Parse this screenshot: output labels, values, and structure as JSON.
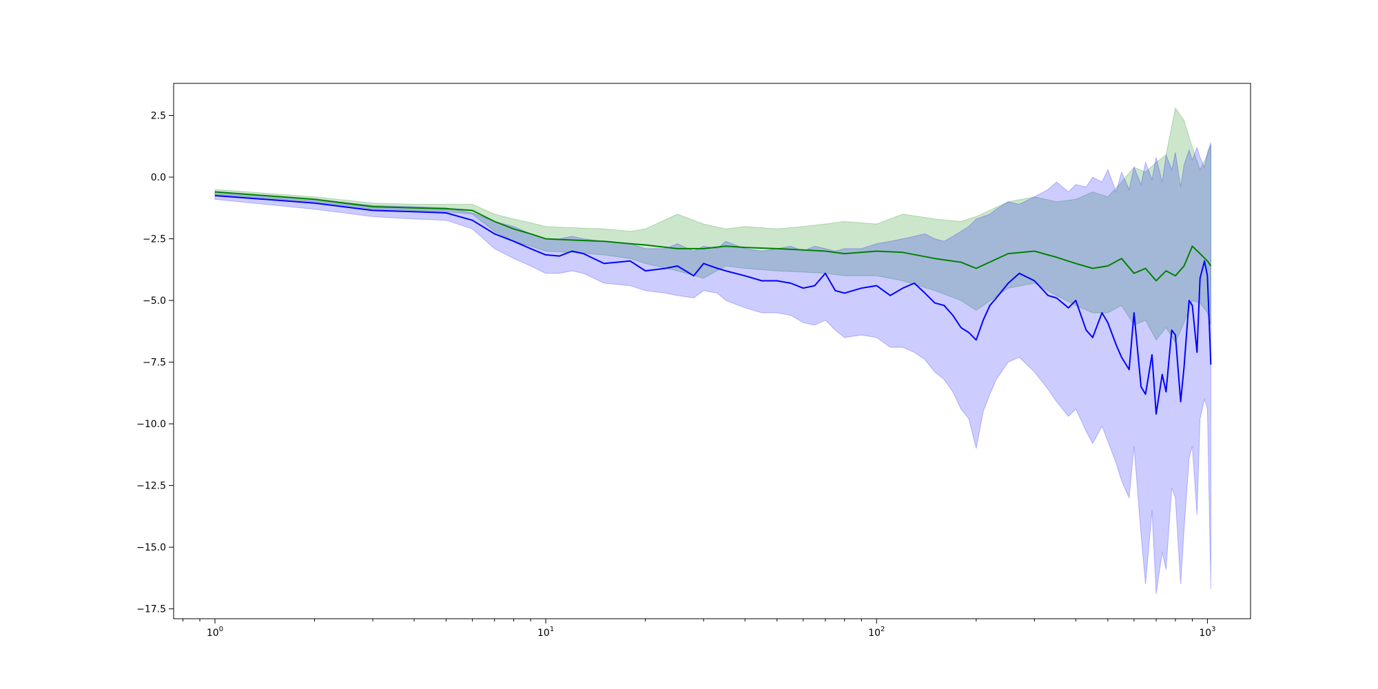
{
  "chart_data": {
    "type": "line",
    "title": "",
    "xlabel": "",
    "ylabel": "",
    "xscale": "log",
    "xlim": [
      0.75,
      1350
    ],
    "ylim": [
      -17.9,
      3.8
    ],
    "grid": false,
    "legend": "none",
    "x_ticks": [
      {
        "value": 1,
        "base": "10",
        "exp": "0"
      },
      {
        "value": 10,
        "base": "10",
        "exp": "1"
      },
      {
        "value": 100,
        "base": "10",
        "exp": "2"
      },
      {
        "value": 1000,
        "base": "10",
        "exp": "3"
      }
    ],
    "y_ticks": [
      {
        "value": 2.5,
        "label": "2.5"
      },
      {
        "value": 0.0,
        "label": "0.0"
      },
      {
        "value": -2.5,
        "label": "−2.5"
      },
      {
        "value": -5.0,
        "label": "−5.0"
      },
      {
        "value": -7.5,
        "label": "−7.5"
      },
      {
        "value": -10.0,
        "label": "−10.0"
      },
      {
        "value": -12.5,
        "label": "−12.5"
      },
      {
        "value": -15.0,
        "label": "−15.0"
      },
      {
        "value": -17.5,
        "label": "−17.5"
      }
    ],
    "series": [
      {
        "color": "#008000",
        "band_color": "#008000",
        "band_opacity": 0.2,
        "x": [
          1,
          2,
          3,
          4,
          5,
          6,
          7,
          8,
          9,
          10,
          12,
          15,
          18,
          20,
          25,
          30,
          35,
          40,
          50,
          60,
          70,
          80,
          100,
          120,
          150,
          180,
          200,
          250,
          300,
          350,
          400,
          450,
          500,
          550,
          600,
          650,
          700,
          750,
          800,
          850,
          900,
          950,
          1000,
          1024
        ],
        "y": [
          -0.6,
          -0.9,
          -1.2,
          -1.25,
          -1.28,
          -1.35,
          -1.8,
          -2.1,
          -2.3,
          -2.5,
          -2.55,
          -2.6,
          -2.7,
          -2.75,
          -2.9,
          -2.9,
          -2.8,
          -2.85,
          -2.9,
          -2.95,
          -3.0,
          -3.1,
          -3.0,
          -3.05,
          -3.3,
          -3.45,
          -3.7,
          -3.1,
          -3.0,
          -3.25,
          -3.5,
          -3.7,
          -3.6,
          -3.3,
          -3.9,
          -3.7,
          -4.2,
          -3.8,
          -4.0,
          -3.6,
          -2.8,
          -3.1,
          -3.4,
          -3.6
        ],
        "lower": [
          -0.7,
          -1.0,
          -1.3,
          -1.35,
          -1.4,
          -1.5,
          -2.2,
          -2.6,
          -2.8,
          -3.0,
          -3.05,
          -3.15,
          -3.3,
          -3.5,
          -3.8,
          -4.1,
          -3.6,
          -3.7,
          -3.8,
          -3.85,
          -3.9,
          -4.0,
          -4.0,
          -4.2,
          -4.6,
          -5.0,
          -5.4,
          -4.5,
          -4.3,
          -4.8,
          -5.2,
          -5.5,
          -5.5,
          -5.2,
          -6.0,
          -5.8,
          -6.6,
          -6.1,
          -6.7,
          -5.9,
          -5.0,
          -5.1,
          -5.5,
          -6.0
        ],
        "upper": [
          -0.5,
          -0.8,
          -1.05,
          -1.1,
          -1.1,
          -1.1,
          -1.5,
          -1.7,
          -1.85,
          -2.0,
          -2.05,
          -2.1,
          -2.2,
          -2.1,
          -1.5,
          -1.9,
          -2.1,
          -2.0,
          -2.1,
          -2.0,
          -1.9,
          -1.8,
          -1.9,
          -1.5,
          -1.7,
          -1.8,
          -1.6,
          -1.0,
          -0.8,
          -1.0,
          -0.9,
          -0.6,
          -0.8,
          -0.2,
          0.4,
          0.2,
          0.6,
          0.9,
          2.8,
          2.3,
          1.2,
          0.3,
          0.9,
          1.3
        ]
      },
      {
        "color": "#0000ff",
        "band_color": "#0000ff",
        "band_opacity": 0.2,
        "x": [
          1,
          2,
          3,
          4,
          5,
          6,
          7,
          8,
          9,
          10,
          11,
          12,
          13,
          15,
          18,
          20,
          23,
          25,
          28,
          30,
          33,
          35,
          40,
          45,
          50,
          55,
          60,
          65,
          70,
          75,
          80,
          90,
          100,
          110,
          120,
          130,
          140,
          150,
          160,
          170,
          180,
          190,
          200,
          210,
          220,
          230,
          250,
          270,
          300,
          330,
          350,
          380,
          400,
          430,
          450,
          480,
          500,
          530,
          550,
          580,
          600,
          630,
          650,
          680,
          700,
          730,
          750,
          780,
          800,
          830,
          850,
          880,
          900,
          930,
          950,
          980,
          1000,
          1024
        ],
        "y": [
          -0.75,
          -1.05,
          -1.35,
          -1.4,
          -1.45,
          -1.75,
          -2.3,
          -2.6,
          -2.9,
          -3.15,
          -3.2,
          -3.0,
          -3.1,
          -3.5,
          -3.4,
          -3.8,
          -3.7,
          -3.6,
          -4.0,
          -3.5,
          -3.7,
          -3.8,
          -4.0,
          -4.2,
          -4.2,
          -4.3,
          -4.5,
          -4.4,
          -3.9,
          -4.6,
          -4.7,
          -4.5,
          -4.4,
          -4.8,
          -4.5,
          -4.3,
          -4.7,
          -5.1,
          -5.2,
          -5.6,
          -6.1,
          -6.3,
          -6.6,
          -5.8,
          -5.2,
          -4.9,
          -4.3,
          -3.9,
          -4.2,
          -4.8,
          -4.9,
          -5.3,
          -5.0,
          -6.2,
          -6.5,
          -5.5,
          -5.9,
          -6.8,
          -7.3,
          -7.8,
          -5.5,
          -8.5,
          -8.8,
          -7.2,
          -9.6,
          -8.0,
          -8.7,
          -6.2,
          -6.4,
          -9.1,
          -7.7,
          -5.0,
          -5.2,
          -7.1,
          -4.1,
          -3.4,
          -4.0,
          -7.6
        ],
        "lower": [
          -0.9,
          -1.3,
          -1.6,
          -1.7,
          -1.75,
          -2.1,
          -2.9,
          -3.3,
          -3.6,
          -3.9,
          -3.9,
          -3.8,
          -3.9,
          -4.3,
          -4.4,
          -4.6,
          -4.7,
          -4.8,
          -4.9,
          -4.6,
          -4.7,
          -5.0,
          -5.3,
          -5.5,
          -5.5,
          -5.6,
          -5.9,
          -6.0,
          -5.8,
          -6.2,
          -6.5,
          -6.4,
          -6.5,
          -6.9,
          -6.9,
          -7.1,
          -7.4,
          -7.9,
          -8.2,
          -8.7,
          -9.4,
          -9.8,
          -11.0,
          -9.5,
          -8.8,
          -8.2,
          -7.5,
          -7.3,
          -7.9,
          -8.6,
          -9.1,
          -9.7,
          -9.4,
          -10.3,
          -10.8,
          -10.1,
          -10.7,
          -11.6,
          -12.3,
          -13.0,
          -10.9,
          -14.5,
          -16.5,
          -13.5,
          -16.9,
          -15.2,
          -15.9,
          -12.6,
          -13.0,
          -16.5,
          -14.3,
          -11.4,
          -10.9,
          -13.7,
          -9.8,
          -9.0,
          -9.4,
          -16.7
        ],
        "upper": [
          -0.6,
          -0.9,
          -1.15,
          -1.2,
          -1.25,
          -1.45,
          -1.8,
          -2.0,
          -2.3,
          -2.5,
          -2.5,
          -2.4,
          -2.5,
          -2.6,
          -2.7,
          -2.9,
          -2.9,
          -2.7,
          -3.0,
          -2.8,
          -2.9,
          -2.6,
          -2.9,
          -3.0,
          -2.9,
          -2.8,
          -3.0,
          -2.8,
          -2.9,
          -3.0,
          -2.9,
          -2.9,
          -2.7,
          -2.6,
          -2.5,
          -2.4,
          -2.3,
          -2.5,
          -2.6,
          -2.4,
          -2.2,
          -2.0,
          -1.7,
          -1.6,
          -1.5,
          -1.3,
          -1.0,
          -1.1,
          -0.8,
          -0.5,
          -0.2,
          -0.6,
          -0.3,
          -0.4,
          0.0,
          -0.2,
          0.3,
          -0.6,
          0.2,
          -0.5,
          0.4,
          -0.3,
          0.6,
          -0.1,
          0.8,
          -0.2,
          0.9,
          0.3,
          1.0,
          -0.4,
          0.5,
          1.1,
          0.7,
          1.2,
          0.8,
          0.4,
          1.0,
          1.4
        ]
      }
    ]
  }
}
